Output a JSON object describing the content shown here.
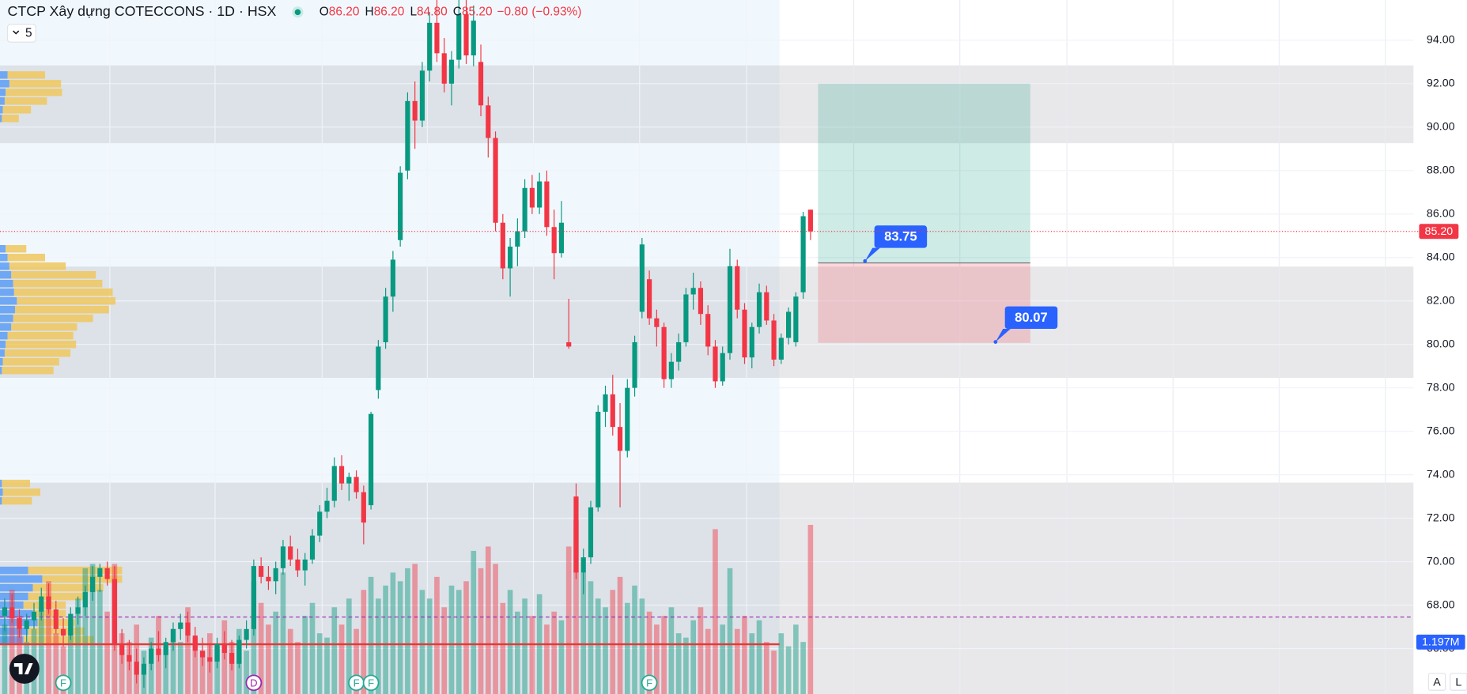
{
  "chart_data": {
    "type": "candlestick",
    "title": "CTCP Xây dựng COTECCONS · 1D · HSX",
    "legend": {
      "open": {
        "prefix": "O",
        "value": 86.2,
        "label": "86.20"
      },
      "high": {
        "prefix": "H",
        "value": 86.2,
        "label": "86.20"
      },
      "low": {
        "prefix": "L",
        "value": 84.8,
        "label": "84.80"
      },
      "close": {
        "prefix": "C",
        "value": 85.2,
        "label": "85.20"
      },
      "change": {
        "value": -0.8,
        "label": "−0.80"
      },
      "change_pct": {
        "value": -0.93,
        "label": "(−0.93%)"
      }
    },
    "indicator_count": 5,
    "colors": {
      "up": "#089981",
      "down": "#f23645",
      "profile_up": "#5b9cf6",
      "profile_down": "#f0c75e"
    },
    "candles": [
      [
        67.5,
        68.3,
        66.8,
        67.9
      ],
      [
        67.9,
        68.5,
        67.2,
        67.4
      ],
      [
        67.4,
        67.8,
        66.5,
        66.9
      ],
      [
        66.9,
        67.6,
        66.3,
        67.3
      ],
      [
        67.3,
        68.1,
        66.9,
        67.7
      ],
      [
        67.7,
        68.8,
        67.3,
        68.4
      ],
      [
        68.4,
        69.0,
        67.6,
        67.8
      ],
      [
        67.8,
        68.2,
        66.7,
        66.9
      ],
      [
        66.9,
        67.4,
        66.1,
        66.6
      ],
      [
        66.6,
        67.9,
        66.4,
        67.6
      ],
      [
        67.6,
        68.4,
        67.1,
        67.9
      ],
      [
        67.9,
        68.9,
        67.5,
        68.6
      ],
      [
        68.6,
        69.8,
        68.2,
        69.3
      ],
      [
        69.3,
        69.9,
        68.6,
        69.7
      ],
      [
        69.7,
        70.0,
        68.9,
        69.2
      ],
      [
        69.2,
        69.8,
        65.9,
        66.2
      ],
      [
        66.2,
        66.9,
        65.3,
        65.7
      ],
      [
        65.7,
        66.4,
        65.0,
        65.4
      ],
      [
        65.4,
        66.0,
        64.4,
        64.8
      ],
      [
        64.8,
        65.6,
        64.2,
        65.3
      ],
      [
        65.3,
        66.3,
        65.0,
        66.0
      ],
      [
        66.0,
        66.8,
        65.4,
        65.7
      ],
      [
        65.7,
        66.5,
        65.1,
        66.3
      ],
      [
        66.3,
        67.2,
        65.9,
        66.9
      ],
      [
        66.9,
        67.6,
        66.4,
        67.2
      ],
      [
        67.2,
        67.7,
        66.3,
        66.6
      ],
      [
        66.6,
        67.0,
        65.6,
        65.9
      ],
      [
        65.9,
        66.5,
        65.2,
        65.6
      ],
      [
        65.6,
        66.2,
        64.9,
        65.4
      ],
      [
        65.4,
        66.5,
        65.1,
        66.2
      ],
      [
        66.2,
        66.8,
        65.5,
        65.8
      ],
      [
        65.8,
        66.4,
        65.0,
        65.3
      ],
      [
        65.3,
        66.6,
        65.1,
        66.4
      ],
      [
        66.4,
        67.3,
        66.0,
        66.9
      ],
      [
        66.9,
        70.1,
        66.6,
        69.8
      ],
      [
        69.8,
        70.2,
        69.0,
        69.3
      ],
      [
        69.3,
        69.8,
        68.7,
        69.1
      ],
      [
        69.1,
        70.0,
        68.5,
        69.7
      ],
      [
        69.7,
        71.0,
        69.4,
        70.7
      ],
      [
        70.7,
        71.2,
        69.8,
        70.1
      ],
      [
        70.1,
        70.6,
        69.3,
        69.6
      ],
      [
        69.6,
        70.4,
        68.9,
        70.1
      ],
      [
        70.1,
        71.5,
        69.9,
        71.2
      ],
      [
        71.2,
        72.6,
        70.9,
        72.3
      ],
      [
        72.3,
        73.4,
        72.0,
        72.8
      ],
      [
        72.8,
        74.8,
        72.5,
        74.4
      ],
      [
        74.4,
        74.9,
        73.3,
        73.6
      ],
      [
        73.6,
        74.1,
        72.8,
        73.9
      ],
      [
        73.9,
        74.2,
        72.9,
        73.2
      ],
      [
        73.2,
        73.5,
        70.8,
        71.8
      ],
      [
        72.6,
        76.9,
        72.4,
        76.8
      ],
      [
        77.9,
        80.2,
        77.5,
        79.9
      ],
      [
        80.1,
        82.6,
        79.8,
        82.2
      ],
      [
        82.2,
        84.3,
        81.5,
        83.9
      ],
      [
        84.8,
        88.2,
        84.5,
        87.9
      ],
      [
        88.0,
        91.6,
        87.6,
        91.2
      ],
      [
        91.2,
        92.1,
        89.0,
        90.3
      ],
      [
        90.3,
        93.0,
        90.0,
        92.6
      ],
      [
        92.6,
        95.3,
        92.1,
        94.8
      ],
      [
        94.8,
        95.9,
        93.0,
        93.4
      ],
      [
        93.4,
        94.1,
        91.6,
        92.0
      ],
      [
        92.0,
        93.5,
        91.0,
        93.1
      ],
      [
        93.1,
        95.9,
        92.7,
        95.2
      ],
      [
        95.2,
        95.9,
        92.9,
        93.3
      ],
      [
        93.3,
        95.6,
        92.8,
        94.9
      ],
      [
        93.0,
        93.8,
        90.5,
        91.0
      ],
      [
        91.0,
        91.4,
        88.6,
        89.5
      ],
      [
        89.5,
        89.8,
        85.2,
        85.6
      ],
      [
        85.6,
        86.0,
        83.0,
        83.5
      ],
      [
        83.5,
        84.9,
        82.2,
        84.5
      ],
      [
        84.5,
        85.8,
        83.6,
        85.2
      ],
      [
        85.2,
        87.6,
        84.9,
        87.2
      ],
      [
        87.2,
        87.8,
        86.0,
        86.3
      ],
      [
        86.3,
        87.9,
        86.0,
        87.5
      ],
      [
        87.5,
        88.0,
        85.0,
        85.4
      ],
      [
        85.4,
        86.2,
        83.0,
        84.2
      ],
      [
        84.2,
        86.6,
        84.0,
        85.6
      ],
      [
        80.1,
        82.1,
        79.8,
        79.9
      ],
      [
        73.0,
        73.6,
        69.2,
        69.5
      ],
      [
        69.5,
        70.6,
        68.5,
        70.2
      ],
      [
        70.2,
        72.8,
        69.9,
        72.5
      ],
      [
        72.5,
        77.2,
        72.3,
        76.9
      ],
      [
        76.9,
        78.1,
        76.2,
        77.7
      ],
      [
        77.7,
        78.6,
        75.8,
        76.2
      ],
      [
        76.2,
        77.3,
        72.5,
        75.1
      ],
      [
        75.1,
        78.4,
        74.8,
        78.0
      ],
      [
        78.0,
        80.4,
        77.6,
        80.1
      ],
      [
        81.5,
        84.9,
        81.2,
        84.6
      ],
      [
        83.0,
        83.4,
        80.9,
        81.2
      ],
      [
        81.2,
        81.6,
        79.9,
        80.8
      ],
      [
        80.8,
        81.0,
        78.0,
        78.4
      ],
      [
        78.4,
        79.6,
        78.0,
        79.2
      ],
      [
        79.2,
        80.5,
        78.8,
        80.1
      ],
      [
        80.1,
        82.6,
        79.9,
        82.3
      ],
      [
        82.3,
        83.3,
        81.6,
        82.6
      ],
      [
        82.6,
        82.9,
        80.9,
        81.4
      ],
      [
        81.4,
        81.8,
        79.5,
        79.9
      ],
      [
        79.9,
        80.2,
        78.0,
        78.3
      ],
      [
        78.3,
        79.9,
        78.1,
        79.6
      ],
      [
        79.6,
        84.4,
        79.3,
        83.6
      ],
      [
        83.6,
        83.9,
        81.2,
        81.6
      ],
      [
        81.6,
        81.9,
        79.1,
        79.4
      ],
      [
        79.4,
        81.0,
        78.9,
        80.8
      ],
      [
        80.8,
        82.8,
        80.5,
        82.4
      ],
      [
        82.4,
        82.7,
        80.9,
        81.1
      ],
      [
        81.1,
        81.4,
        79.0,
        79.3
      ],
      [
        79.3,
        80.5,
        79.1,
        80.3
      ],
      [
        80.3,
        81.7,
        80.0,
        81.5
      ],
      [
        80.1,
        82.4,
        79.9,
        82.2
      ],
      [
        82.4,
        86.1,
        82.1,
        85.9
      ],
      [
        86.2,
        86.2,
        84.8,
        85.2
      ]
    ],
    "volumes": [
      1.6,
      2.4,
      1.8,
      1.2,
      1.5,
      2.0,
      2.6,
      1.4,
      1.1,
      1.7,
      2.2,
      2.9,
      3.0,
      2.4,
      1.9,
      3.0,
      1.4,
      1.2,
      1.6,
      1.0,
      1.3,
      1.8,
      1.1,
      1.5,
      1.2,
      2.0,
      1.3,
      1.0,
      1.4,
      1.1,
      1.7,
      1.2,
      1.5,
      1.0,
      2.6,
      2.1,
      1.6,
      1.9,
      2.8,
      1.5,
      1.2,
      1.8,
      2.1,
      1.4,
      1.3,
      2.0,
      1.6,
      2.2,
      1.5,
      2.4,
      2.7,
      2.2,
      2.5,
      2.8,
      2.6,
      2.9,
      3.0,
      2.4,
      2.2,
      2.7,
      2.0,
      2.5,
      2.4,
      2.6,
      3.3,
      2.9,
      3.4,
      3.0,
      2.1,
      2.4,
      1.9,
      2.2,
      1.8,
      2.3,
      1.6,
      1.9,
      1.7,
      3.4,
      4.0,
      2.8,
      2.6,
      2.2,
      2.0,
      2.4,
      2.7,
      2.1,
      2.5,
      2.2,
      1.9,
      1.6,
      1.8,
      2.0,
      1.4,
      1.3,
      1.7,
      2.0,
      1.5,
      3.8,
      1.6,
      2.9,
      1.5,
      1.8,
      1.4,
      1.7,
      1.2,
      1.0,
      1.4,
      1.1,
      1.6,
      1.2,
      3.9
    ],
    "ylim": [
      63.91,
      95.85
    ],
    "yticks": [
      {
        "value": 66,
        "label": "66.00"
      },
      {
        "value": 68,
        "label": "68.00"
      },
      {
        "value": 70,
        "label": "70.00"
      },
      {
        "value": 72,
        "label": "72.00"
      },
      {
        "value": 74,
        "label": "74.00"
      },
      {
        "value": 76,
        "label": "76.00"
      },
      {
        "value": 78,
        "label": "78.00"
      },
      {
        "value": 80,
        "label": "80.00"
      },
      {
        "value": 82,
        "label": "82.00"
      },
      {
        "value": 84,
        "label": "84.00"
      },
      {
        "value": 86,
        "label": "86.00"
      },
      {
        "value": 88,
        "label": "88.00"
      },
      {
        "value": 90,
        "label": "90.00"
      },
      {
        "value": 92,
        "label": "92.00"
      },
      {
        "value": 94,
        "label": "94.00"
      }
    ],
    "vlim": [
      0,
      16
    ],
    "volume_ma": {
      "value": 1.197,
      "label": "1.197M"
    },
    "last_price": {
      "value": 85.2,
      "label": "85.20"
    },
    "zones": [
      [
        89.26,
        92.84
      ],
      [
        78.46,
        83.58
      ],
      [
        63.91,
        73.64
      ]
    ],
    "lines": {
      "support": 66.2,
      "dashed": 67.45
    },
    "position": {
      "entry": {
        "value": 83.75,
        "label": "83.75"
      },
      "target": 92.0,
      "stop": {
        "value": 80.07,
        "label": "80.07"
      }
    },
    "volume_profile": [
      [
        92.4,
        8,
        40
      ],
      [
        92.0,
        10,
        55
      ],
      [
        91.6,
        6,
        60
      ],
      [
        91.2,
        5,
        45
      ],
      [
        90.8,
        3,
        30
      ],
      [
        90.4,
        2,
        18
      ],
      [
        84.4,
        6,
        22
      ],
      [
        84.0,
        8,
        40
      ],
      [
        83.6,
        10,
        60
      ],
      [
        83.2,
        12,
        90
      ],
      [
        82.8,
        14,
        95
      ],
      [
        82.4,
        15,
        105
      ],
      [
        82.0,
        18,
        105
      ],
      [
        81.6,
        16,
        100
      ],
      [
        81.2,
        14,
        85
      ],
      [
        80.8,
        12,
        70
      ],
      [
        80.4,
        8,
        70
      ],
      [
        80.0,
        6,
        75
      ],
      [
        79.6,
        5,
        70
      ],
      [
        79.2,
        3,
        60
      ],
      [
        78.8,
        2,
        55
      ],
      [
        73.6,
        2,
        30
      ],
      [
        73.2,
        3,
        40
      ],
      [
        72.8,
        2,
        32
      ],
      [
        69.6,
        30,
        100
      ],
      [
        69.2,
        45,
        85
      ],
      [
        68.8,
        35,
        75
      ],
      [
        68.4,
        30,
        60
      ],
      [
        68.0,
        25,
        45
      ],
      [
        67.6,
        35,
        35
      ],
      [
        67.2,
        40,
        40
      ],
      [
        66.8,
        30,
        60
      ],
      [
        66.4,
        25,
        75
      ]
    ],
    "events": [
      {
        "candle": 8,
        "label": "F",
        "color": "#22ab94"
      },
      {
        "candle": 34,
        "label": "D",
        "color": "#9c27b0"
      },
      {
        "candle": 48,
        "label": "F",
        "color": "#22ab94"
      },
      {
        "candle": 50,
        "label": "F",
        "color": "#22ab94"
      },
      {
        "candle": 88,
        "label": "F",
        "color": "#22ab94"
      }
    ],
    "grid": true
  },
  "toolbar": {
    "buttons": [
      "A",
      "L"
    ]
  }
}
